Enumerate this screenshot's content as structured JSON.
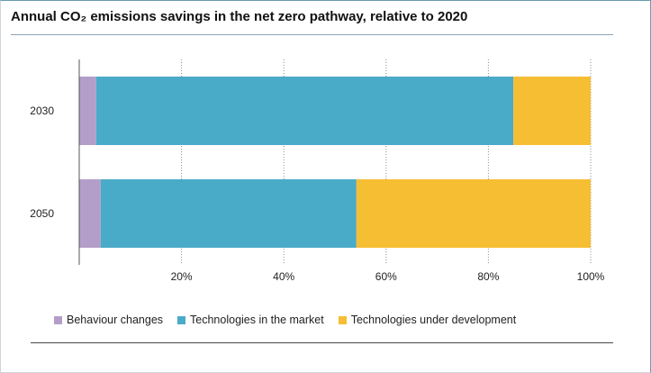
{
  "title": "Annual CO₂ emissions savings in the net zero pathway, relative to 2020",
  "chart_data": {
    "type": "bar",
    "orientation": "horizontal",
    "stacked": true,
    "categories": [
      "2030",
      "2050"
    ],
    "series": [
      {
        "name": "Behaviour changes",
        "color": "#b39ec9",
        "values": [
          3.3,
          4.2
        ]
      },
      {
        "name": "Technologies in the market",
        "color": "#4aabc8",
        "values": [
          81.6,
          50.0
        ]
      },
      {
        "name": "Technologies under development",
        "color": "#f6be33",
        "values": [
          15.1,
          45.8
        ]
      }
    ],
    "xlim": [
      0,
      100
    ],
    "xticks": [
      "20%",
      "40%",
      "60%",
      "80%",
      "100%"
    ],
    "xtick_values": [
      20,
      40,
      60,
      80,
      100
    ],
    "grid": "vertical dotted",
    "legend_position": "bottom"
  }
}
